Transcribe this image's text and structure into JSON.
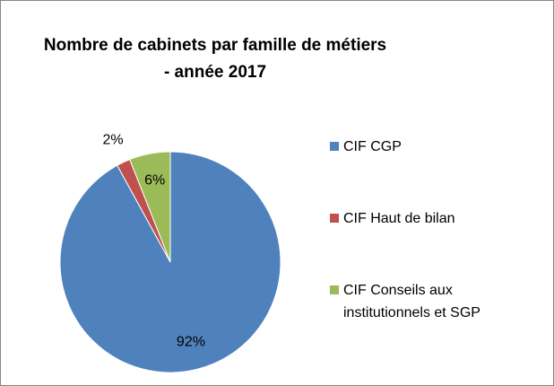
{
  "chart_data": {
    "type": "pie",
    "title": "Nombre de cabinets par famille de métiers\n- année 2017",
    "categories": [
      "CIF CGP",
      "CIF Haut de bilan",
      "CIF Conseils aux institutionnels et SGP"
    ],
    "values": [
      92,
      2,
      6
    ],
    "value_labels": [
      "92%",
      "2%",
      "6%"
    ],
    "colors": [
      "#4f81bd",
      "#c0504d",
      "#9bbb59"
    ],
    "legend": "right"
  }
}
